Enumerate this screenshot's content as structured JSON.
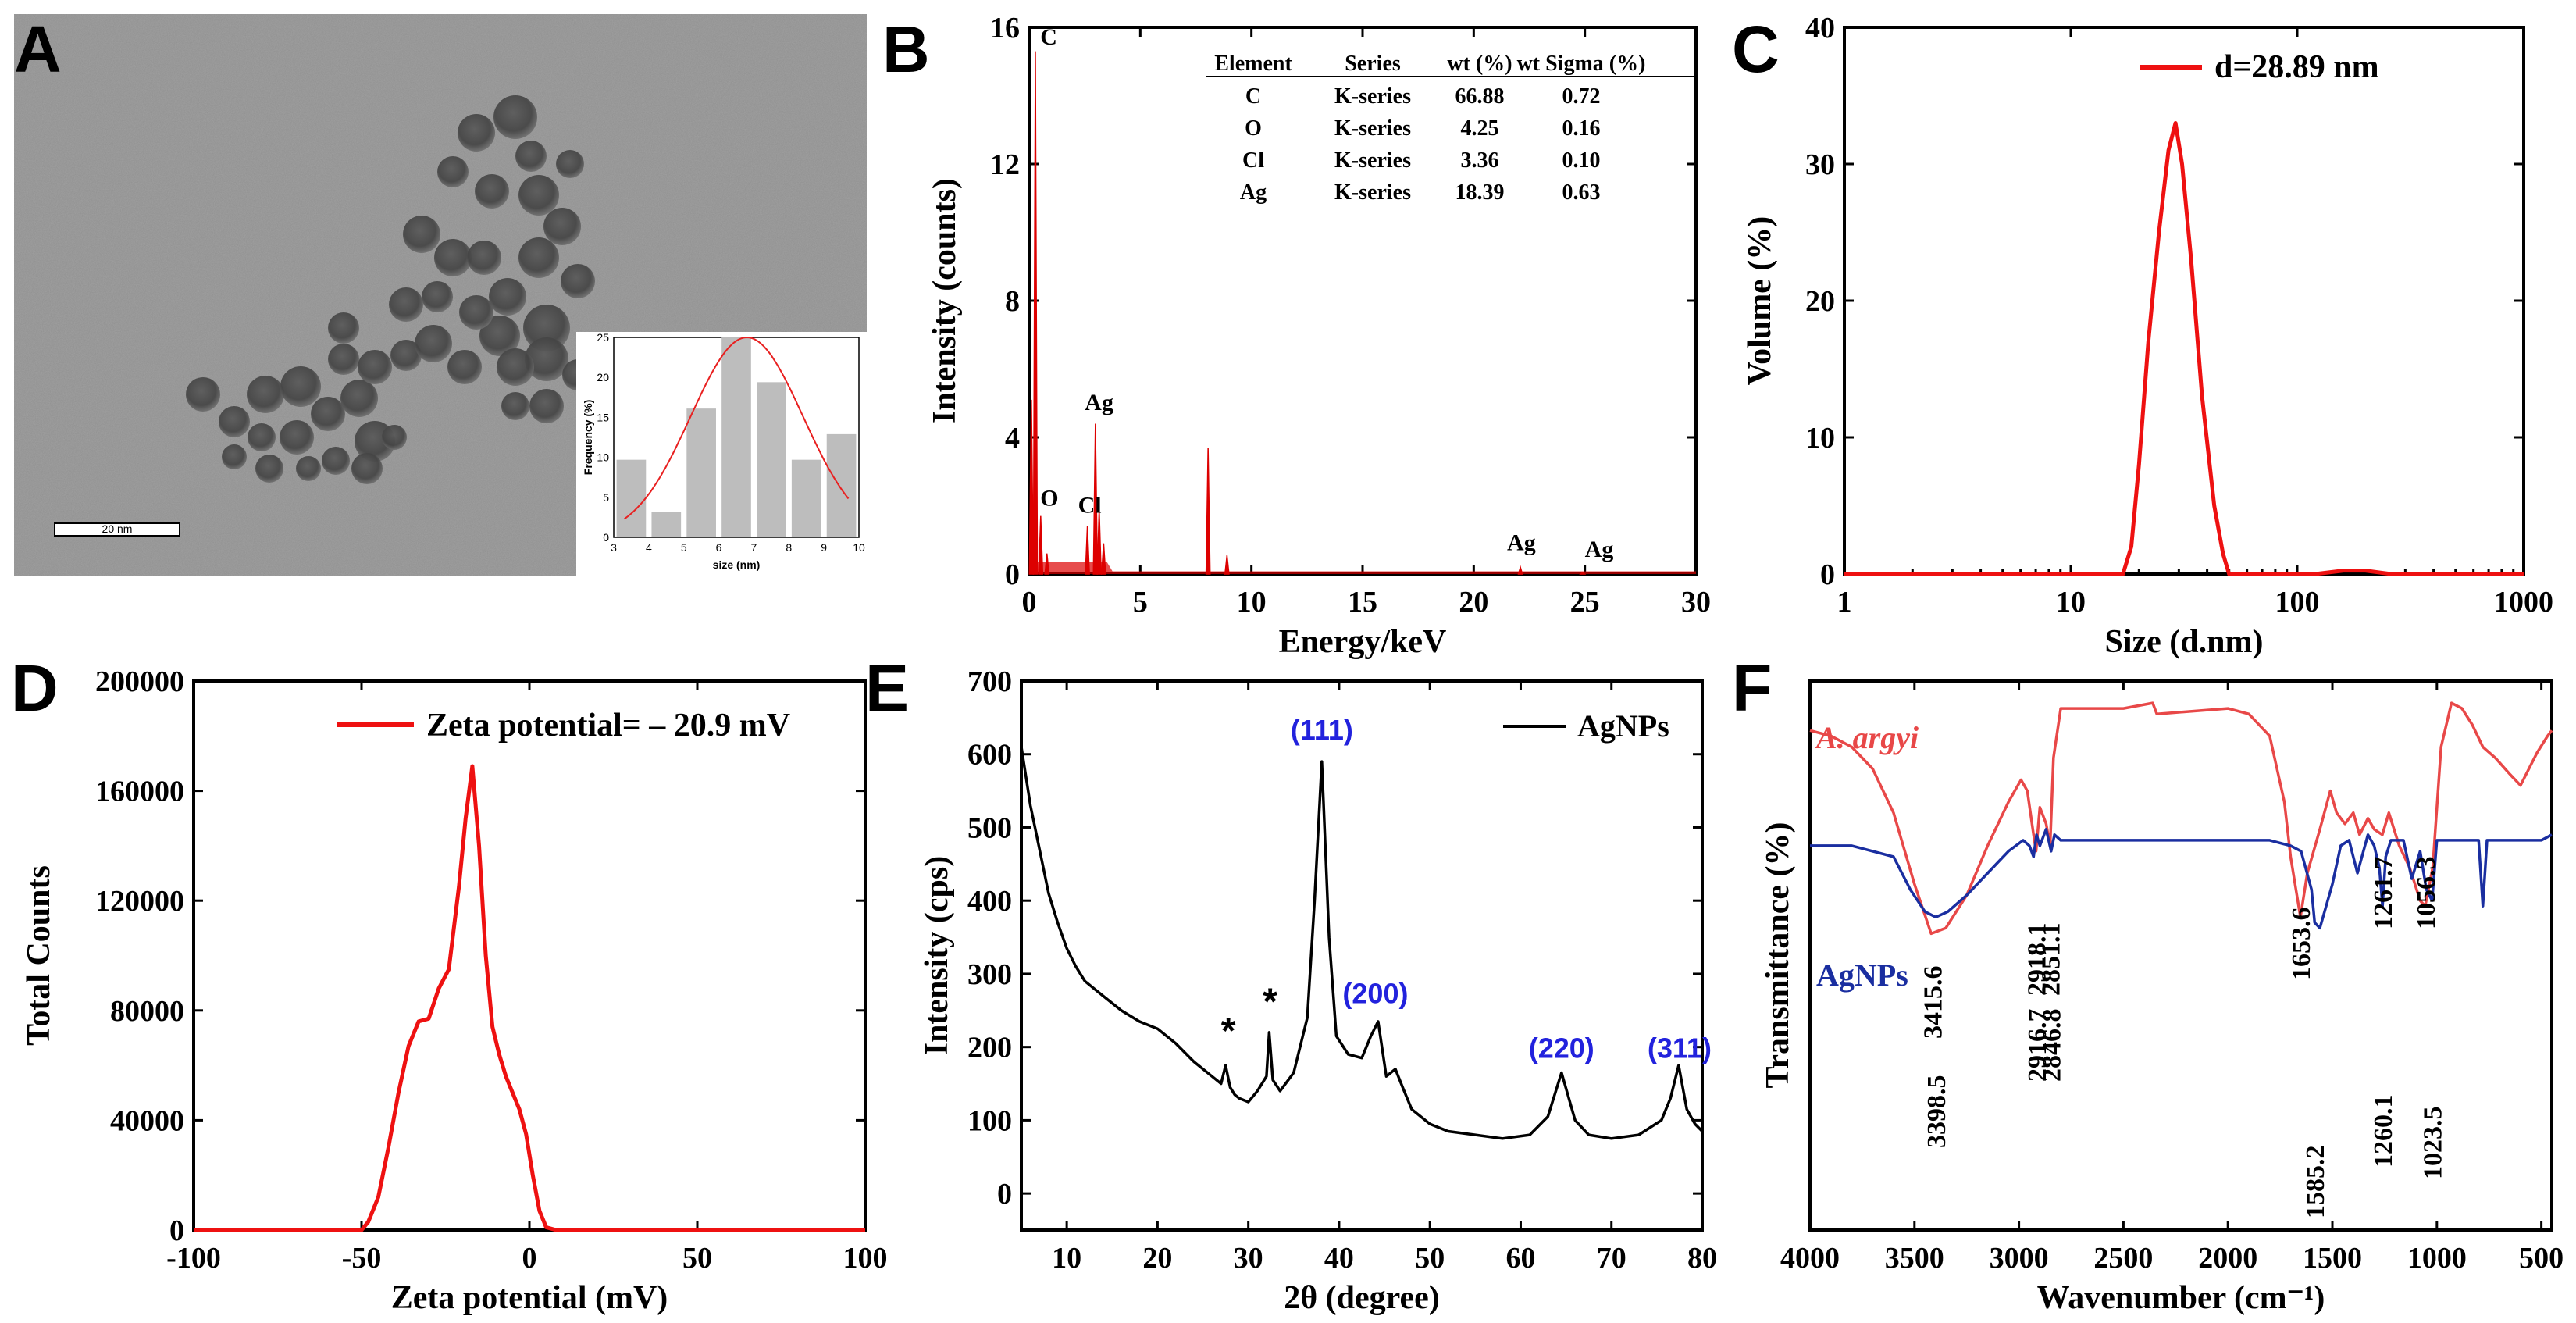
{
  "panels": {
    "A": {
      "label": "A",
      "scale_bar": "20 nm",
      "inset_xlabel": "size (nm)",
      "inset_ylabel": "Frequency (%)"
    },
    "B": {
      "label": "B"
    },
    "C": {
      "label": "C"
    },
    "D": {
      "label": "D"
    },
    "E": {
      "label": "E"
    },
    "F": {
      "label": "F"
    }
  },
  "chart_data": [
    {
      "id": "A_inset",
      "type": "bar",
      "title": "",
      "xlabel": "size (nm)",
      "ylabel": "Frequency (%)",
      "xlim": [
        3,
        10
      ],
      "ylim": [
        0,
        25
      ],
      "xticks": [
        "3",
        "4",
        "5",
        "6",
        "7",
        "8",
        "9",
        "10"
      ],
      "yticks": [
        "0",
        "5",
        "10",
        "15",
        "20",
        "25"
      ],
      "bins": [
        3.5,
        4.5,
        5.5,
        6.5,
        7.5,
        8.5,
        9.5
      ],
      "values": [
        9.7,
        3.2,
        16.1,
        25.0,
        19.4,
        9.7,
        12.9
      ],
      "fit": {
        "type": "gaussian",
        "mean": 6.8,
        "sigma": 1.6,
        "peak": 25
      }
    },
    {
      "id": "B",
      "type": "bar",
      "xlabel": "Energy/keV",
      "ylabel": "Intensity (counts)",
      "xlim": [
        0,
        30
      ],
      "ylim": [
        0,
        16
      ],
      "xticks": [
        "0",
        "5",
        "10",
        "15",
        "20",
        "25",
        "30"
      ],
      "yticks": [
        "0",
        "4",
        "8",
        "12",
        "16"
      ],
      "peaks": [
        {
          "x": 0.1,
          "y": 5.1
        },
        {
          "x": 0.28,
          "y": 15.3
        },
        {
          "x": 0.52,
          "y": 1.7
        },
        {
          "x": 0.8,
          "y": 0.6
        },
        {
          "x": 2.62,
          "y": 1.4
        },
        {
          "x": 2.98,
          "y": 4.4
        },
        {
          "x": 3.15,
          "y": 1.9
        },
        {
          "x": 3.35,
          "y": 0.9
        },
        {
          "x": 8.05,
          "y": 3.7
        },
        {
          "x": 8.9,
          "y": 0.55
        },
        {
          "x": 22.1,
          "y": 0.2
        },
        {
          "x": 24.9,
          "y": 0.05
        }
      ],
      "annotations": [
        {
          "text": "C",
          "x": 0.5,
          "y": 15.5
        },
        {
          "text": "O",
          "x": 0.5,
          "y": 2.0
        },
        {
          "text": "Cl",
          "x": 2.2,
          "y": 1.8
        },
        {
          "text": "Ag",
          "x": 2.5,
          "y": 4.8
        },
        {
          "text": "Ag",
          "x": 21.5,
          "y": 0.7
        },
        {
          "text": "Ag",
          "x": 25.0,
          "y": 0.5
        }
      ],
      "table": {
        "headers": [
          "Element",
          "Series",
          "wt (%)",
          "wt Sigma (%)"
        ],
        "rows": [
          [
            "C",
            "K-series",
            "66.88",
            "0.72"
          ],
          [
            "O",
            "K-series",
            "4.25",
            "0.16"
          ],
          [
            "Cl",
            "K-series",
            "3.36",
            "0.10"
          ],
          [
            "Ag",
            "K-series",
            "18.39",
            "0.63"
          ]
        ]
      },
      "color": "#dd0000"
    },
    {
      "id": "C",
      "type": "line",
      "xlabel": "Size (d.nm)",
      "ylabel": "Volume (%)",
      "xscale": "log",
      "xlim": [
        1,
        1000
      ],
      "ylim": [
        0,
        40
      ],
      "xticks": [
        "1",
        "10",
        "100",
        "1000"
      ],
      "yticks": [
        "0",
        "10",
        "20",
        "30",
        "40"
      ],
      "legend": "d=28.89 nm",
      "x": [
        1,
        17,
        18.5,
        20,
        22,
        24.5,
        27,
        29,
        31,
        34,
        38,
        43,
        47,
        50,
        120,
        160,
        200,
        260,
        1000
      ],
      "y": [
        0,
        0,
        2,
        8,
        17,
        25,
        31,
        33,
        30,
        23,
        13,
        5,
        1.5,
        0,
        0,
        0.25,
        0.25,
        0,
        0
      ],
      "color": "#ee1111"
    },
    {
      "id": "D",
      "type": "line",
      "xlabel": "Zeta potential (mV)",
      "ylabel": "Total Counts",
      "xlim": [
        -100,
        100
      ],
      "ylim": [
        0,
        200000
      ],
      "xticks": [
        "-100",
        "-50",
        "0",
        "50",
        "100"
      ],
      "yticks": [
        "0",
        "40000",
        "80000",
        "120000",
        "160000",
        "200000"
      ],
      "legend": "Zeta potential= ‒ 20.9 mV",
      "x": [
        -100,
        -50,
        -48,
        -45,
        -42,
        -39,
        -36,
        -33,
        -30,
        -27,
        -24,
        -21,
        -19,
        -17,
        -15,
        -13,
        -11,
        -9,
        -7,
        -5,
        -3,
        -1,
        1,
        3,
        5,
        8,
        100
      ],
      "y": [
        0,
        0,
        3000,
        12000,
        30000,
        50000,
        67000,
        76000,
        77000,
        88000,
        95000,
        125000,
        150000,
        169000,
        140000,
        100000,
        74000,
        64000,
        56000,
        50000,
        44000,
        35000,
        20000,
        7000,
        1000,
        0,
        0
      ],
      "color": "#ee1111"
    },
    {
      "id": "E",
      "type": "line",
      "xlabel": "2θ (degree)",
      "ylabel": "Intensity (cps)",
      "xlim": [
        5,
        80
      ],
      "ylim": [
        -50,
        700
      ],
      "xticks": [
        "10",
        "20",
        "30",
        "40",
        "50",
        "60",
        "70",
        "80"
      ],
      "yticks": [
        "0",
        "100",
        "200",
        "300",
        "400",
        "500",
        "600",
        "700"
      ],
      "legend": "AgNPs",
      "x": [
        5,
        6,
        7,
        8,
        9,
        10,
        11,
        12,
        14,
        16,
        18,
        20,
        22,
        24,
        26,
        27,
        27.5,
        28,
        28.5,
        29,
        30,
        31,
        32,
        32.3,
        32.7,
        33.5,
        35,
        36.5,
        37.3,
        38.1,
        38.9,
        39.7,
        41,
        42.5,
        43.5,
        44.3,
        45.2,
        46.2,
        47,
        48,
        50,
        52,
        55,
        58,
        61,
        63,
        64.5,
        66,
        67.5,
        70,
        73,
        75.5,
        76.5,
        77.4,
        78.3,
        79.2,
        80
      ],
      "y": [
        610,
        530,
        470,
        410,
        370,
        335,
        310,
        290,
        270,
        250,
        235,
        225,
        205,
        180,
        160,
        150,
        175,
        145,
        135,
        130,
        125,
        140,
        160,
        220,
        155,
        140,
        165,
        240,
        400,
        590,
        350,
        215,
        190,
        185,
        215,
        235,
        160,
        170,
        145,
        115,
        95,
        85,
        80,
        75,
        80,
        105,
        165,
        100,
        80,
        75,
        80,
        100,
        130,
        175,
        115,
        95,
        85
      ],
      "annotations": [
        {
          "text": "*",
          "x": 27.8,
          "y": 205,
          "color": "#000000"
        },
        {
          "text": "*",
          "x": 32.4,
          "y": 245,
          "color": "#000000"
        },
        {
          "text": "(111)",
          "x": 38.1,
          "y": 620,
          "color": "#2222dd"
        },
        {
          "text": "(200)",
          "x": 44.0,
          "y": 260,
          "color": "#2222dd"
        },
        {
          "text": "(220)",
          "x": 64.5,
          "y": 185,
          "color": "#2222dd"
        },
        {
          "text": "(311)",
          "x": 77.5,
          "y": 185,
          "color": "#2222dd"
        }
      ],
      "color": "#000000"
    },
    {
      "id": "F",
      "type": "line",
      "xlabel": "Wavenumber (cm⁻¹)",
      "ylabel": "Transmittance (%)",
      "xlim": [
        4000,
        450
      ],
      "x_reversed": true,
      "ylim": [
        0,
        100
      ],
      "xticks": [
        "4000",
        "3500",
        "3000",
        "2500",
        "2000",
        "1500",
        "1000",
        "500"
      ],
      "series": [
        {
          "name": "A. argyi",
          "color": "#e84848",
          "x": [
            4000,
            3900,
            3800,
            3700,
            3600,
            3500,
            3420,
            3350,
            3250,
            3150,
            3050,
            2990,
            2960,
            2930,
            2918,
            2900,
            2870,
            2851,
            2835,
            2800,
            2500,
            2360,
            2340,
            2000,
            1900,
            1800,
            1730,
            1700,
            1653,
            1620,
            1560,
            1510,
            1480,
            1440,
            1400,
            1370,
            1330,
            1300,
            1261,
            1230,
            1180,
            1130,
            1080,
            1056,
            1020,
            980,
            930,
            880,
            830,
            780,
            720,
            650,
            600,
            560,
            520,
            470,
            450
          ],
          "y": [
            91,
            90,
            88,
            84,
            76,
            63,
            54,
            55,
            61,
            70,
            78,
            82,
            80,
            72,
            69,
            77,
            74,
            70,
            86,
            95,
            95,
            96,
            94,
            95,
            94,
            90,
            78,
            68,
            57,
            65,
            73,
            80,
            76,
            74,
            76,
            72,
            75,
            73,
            72,
            76,
            70,
            66,
            60,
            59,
            66,
            88,
            96,
            95,
            92,
            88,
            86,
            83,
            81,
            84,
            87,
            90,
            91
          ]
        },
        {
          "name": "AgNPs",
          "color": "#1a2ea0",
          "x": [
            4000,
            3800,
            3600,
            3520,
            3450,
            3398,
            3340,
            3250,
            3150,
            3050,
            2980,
            2950,
            2930,
            2916,
            2900,
            2870,
            2846,
            2830,
            2800,
            2500,
            2000,
            1800,
            1700,
            1650,
            1600,
            1585,
            1560,
            1500,
            1460,
            1420,
            1380,
            1330,
            1300,
            1275,
            1260,
            1245,
            1220,
            1160,
            1120,
            1080,
            1050,
            1023,
            1000,
            960,
            900,
            850,
            800,
            780,
            760,
            700,
            600,
            500,
            450
          ],
          "y": [
            70,
            70,
            68,
            62,
            58,
            57,
            58,
            61,
            65,
            69,
            71,
            70,
            68,
            72,
            70,
            73,
            69,
            72,
            71,
            71,
            71,
            71,
            70,
            69,
            62,
            56,
            55,
            63,
            70,
            71,
            65,
            72,
            70,
            66,
            59,
            68,
            71,
            71,
            64,
            69,
            62,
            60,
            71,
            71,
            71,
            71,
            71,
            59,
            71,
            71,
            71,
            71,
            72
          ]
        }
      ],
      "annotations": [
        {
          "text": "3415.6",
          "x": 3415.6
        },
        {
          "text": "2918.1",
          "x": 2918.1
        },
        {
          "text": "2851.1",
          "x": 2851.1
        },
        {
          "text": "1653.6",
          "x": 1653.6
        },
        {
          "text": "1261.7",
          "x": 1261.7
        },
        {
          "text": "1056.3",
          "x": 1056.3
        },
        {
          "text": "3398.5",
          "x": 3398.5
        },
        {
          "text": "2916.7",
          "x": 2916.7
        },
        {
          "text": "2846.8",
          "x": 2846.8
        },
        {
          "text": "1585.2",
          "x": 1585.2
        },
        {
          "text": "1260.1",
          "x": 1260.1
        },
        {
          "text": "1023.5",
          "x": 1023.5
        }
      ]
    }
  ]
}
